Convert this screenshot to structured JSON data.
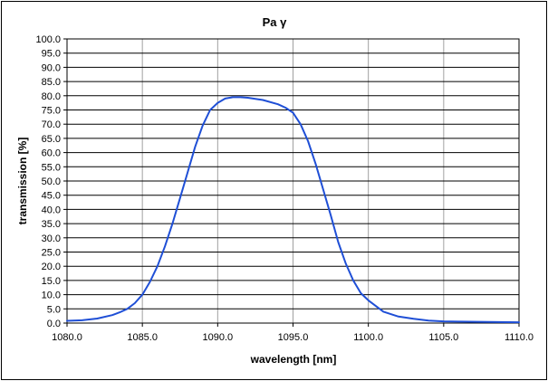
{
  "chart_data": {
    "type": "line",
    "title": "Pa γ",
    "xlabel": "wavelength [nm]",
    "ylabel": "transmission [%]",
    "xlim": [
      1080.0,
      1110.0
    ],
    "ylim": [
      0.0,
      100.0
    ],
    "x_ticks": [
      "1080.0",
      "1085.0",
      "1090.0",
      "1095.0",
      "1100.0",
      "1105.0",
      "1110.0"
    ],
    "y_ticks": [
      "0.0",
      "5.0",
      "10.0",
      "15.0",
      "20.0",
      "25.0",
      "30.0",
      "35.0",
      "40.0",
      "45.0",
      "50.0",
      "55.0",
      "60.0",
      "65.0",
      "70.0",
      "75.0",
      "80.0",
      "85.0",
      "90.0",
      "95.0",
      "100.0"
    ],
    "grid": {
      "horizontal": true,
      "vertical": true
    },
    "colors": {
      "series": "#1f4fd6",
      "grid_major": "#000000",
      "grid_minor": "#a0a0a0"
    },
    "series": [
      {
        "x": [
          1080.0,
          1081.0,
          1082.0,
          1083.0,
          1083.5,
          1084.0,
          1084.5,
          1085.0,
          1085.5,
          1086.0,
          1086.5,
          1087.0,
          1087.5,
          1088.0,
          1088.5,
          1089.0,
          1089.5,
          1090.0,
          1090.5,
          1091.0,
          1091.5,
          1092.0,
          1093.0,
          1094.0,
          1094.5,
          1095.0,
          1095.5,
          1096.0,
          1096.5,
          1097.0,
          1097.5,
          1098.0,
          1098.5,
          1099.0,
          1099.5,
          1100.0,
          1100.5,
          1101.0,
          1102.0,
          1103.0,
          1104.0,
          1105.0,
          1106.0,
          1108.0,
          1110.0
        ],
        "y": [
          0.8,
          1.0,
          1.6,
          2.8,
          3.8,
          5.0,
          7.0,
          10.0,
          14.5,
          20.0,
          27.0,
          35.0,
          44.0,
          53.0,
          62.0,
          69.5,
          75.0,
          77.5,
          79.0,
          79.5,
          79.5,
          79.3,
          78.5,
          77.0,
          75.8,
          74.0,
          70.0,
          64.0,
          56.0,
          47.0,
          38.0,
          28.5,
          21.0,
          15.0,
          10.5,
          8.0,
          6.0,
          4.0,
          2.3,
          1.5,
          0.9,
          0.6,
          0.5,
          0.4,
          0.3
        ]
      }
    ]
  }
}
